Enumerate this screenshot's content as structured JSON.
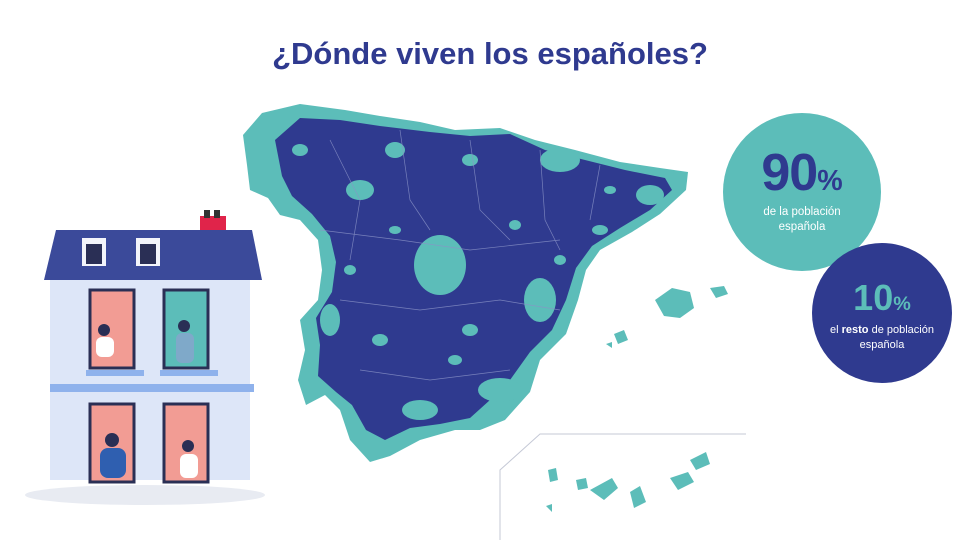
{
  "title": "¿Dónde viven los españoles?",
  "stats": [
    {
      "value": "90",
      "unit": "%",
      "caption": "de la población española",
      "color": "#5cbdb9"
    },
    {
      "value": "10",
      "unit": "%",
      "caption_pre": "el",
      "caption_bold": "resto",
      "caption_post": "de población española",
      "color": "#2f3a8f"
    }
  ],
  "colors": {
    "dark_blue": "#2f3a8f",
    "teal": "#5cbdb9",
    "house_wall": "#dde6f8",
    "roof": "#3b4a9a",
    "chimney": "#e0244a"
  }
}
